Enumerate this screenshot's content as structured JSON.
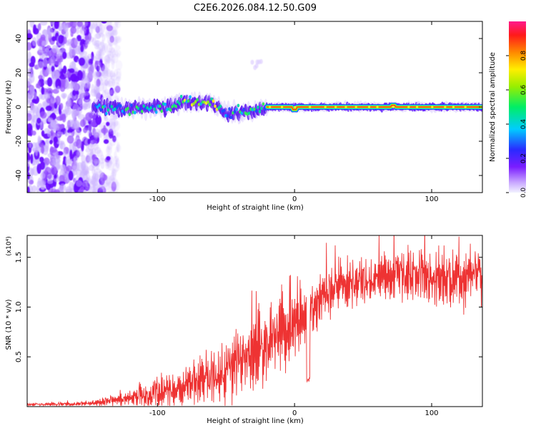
{
  "title": "C2E6.2026.084.12.50.G09",
  "chart_data": [
    {
      "type": "heatmap",
      "name": "spectrogram",
      "xlabel": "Height of straight line (km)",
      "ylabel": "Frequency (Hz)",
      "xlim": [
        -195,
        137
      ],
      "ylim": [
        -50,
        50
      ],
      "x_ticks": [
        -100,
        0,
        100
      ],
      "y_ticks": [
        -40,
        -20,
        0,
        20,
        40
      ],
      "colorbar": {
        "label": "Normalized spectral amplitude",
        "range": [
          0,
          1
        ],
        "ticks": [
          0.0,
          0.2,
          0.4,
          0.6,
          0.8
        ],
        "tick_labels": [
          "0.0",
          "0.2",
          "0.4",
          "0.6",
          "0.8"
        ]
      },
      "features": {
        "noise_region_x": [
          -195,
          -140
        ],
        "band_center_hz": [
          {
            "x": -145,
            "y": 0
          },
          {
            "x": -120,
            "y": -1
          },
          {
            "x": -95,
            "y": 0
          },
          {
            "x": -80,
            "y": 3
          },
          {
            "x": -60,
            "y": 2
          },
          {
            "x": -48,
            "y": -4
          },
          {
            "x": -35,
            "y": -3
          },
          {
            "x": -20,
            "y": 0
          },
          {
            "x": 0,
            "y": 0
          },
          {
            "x": 137,
            "y": 0
          }
        ],
        "band_halfwidth_hz": 3,
        "dip_at_x": 0,
        "bump_at_x": 72
      }
    },
    {
      "type": "line",
      "name": "snr",
      "xlabel": "Height of straight line (km)",
      "ylabel": "SNR (10 * v/v)",
      "multiplier": "(x10⁴)",
      "xlim": [
        -195,
        137
      ],
      "ylim": [
        0,
        1.72
      ],
      "x_ticks": [
        -100,
        0,
        100
      ],
      "y_ticks": [
        0.5,
        1.0,
        1.5
      ],
      "y_tick_labels": [
        "0.5",
        "1.0",
        "1.5"
      ],
      "series": [
        {
          "name": "SNR",
          "color": "#ee3333",
          "envelope": [
            {
              "x": -195,
              "base": 0.02,
              "amp": 0.01
            },
            {
              "x": -150,
              "base": 0.03,
              "amp": 0.02
            },
            {
              "x": -130,
              "base": 0.06,
              "amp": 0.04
            },
            {
              "x": -100,
              "base": 0.12,
              "amp": 0.12
            },
            {
              "x": -80,
              "base": 0.2,
              "amp": 0.15
            },
            {
              "x": -60,
              "base": 0.3,
              "amp": 0.2
            },
            {
              "x": -40,
              "base": 0.42,
              "amp": 0.28
            },
            {
              "x": -20,
              "base": 0.62,
              "amp": 0.3
            },
            {
              "x": 0,
              "base": 0.82,
              "amp": 0.3
            },
            {
              "x": 10,
              "base": 0.95,
              "amp": 0.25
            },
            {
              "x": 30,
              "base": 1.2,
              "amp": 0.2
            },
            {
              "x": 60,
              "base": 1.28,
              "amp": 0.18
            },
            {
              "x": 90,
              "base": 1.35,
              "amp": 0.2
            },
            {
              "x": 110,
              "base": 1.3,
              "amp": 0.24
            },
            {
              "x": 137,
              "base": 1.32,
              "amp": 0.22
            }
          ],
          "notable_dip": {
            "x": 10,
            "y": 0.25
          }
        }
      ]
    }
  ]
}
